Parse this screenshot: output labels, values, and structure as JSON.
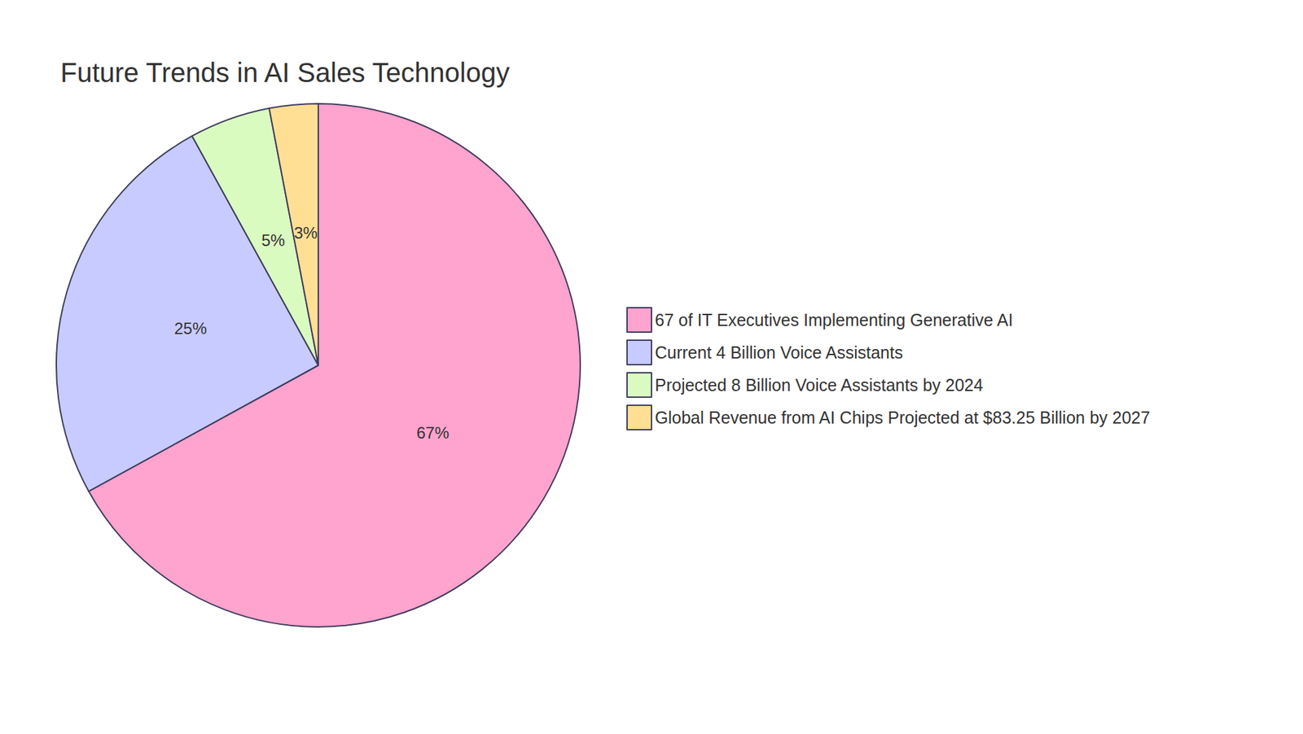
{
  "chart_data": {
    "type": "pie",
    "title": "Future Trends in AI Sales Technology",
    "categories": [
      "67 of IT Executives Implementing Generative AI",
      "Current 4 Billion Voice Assistants",
      "Projected 8 Billion Voice Assistants by 2024",
      "Global Revenue from AI Chips Projected at $83.25 Billion by 2027"
    ],
    "values": [
      67,
      25,
      5,
      3
    ],
    "value_labels": [
      "67%",
      "25%",
      "5%",
      "3%"
    ],
    "colors": [
      "#FFA3CF",
      "#C8CBFF",
      "#DAFBC0",
      "#FFDF94"
    ],
    "data_labels": true,
    "legend": "right"
  }
}
